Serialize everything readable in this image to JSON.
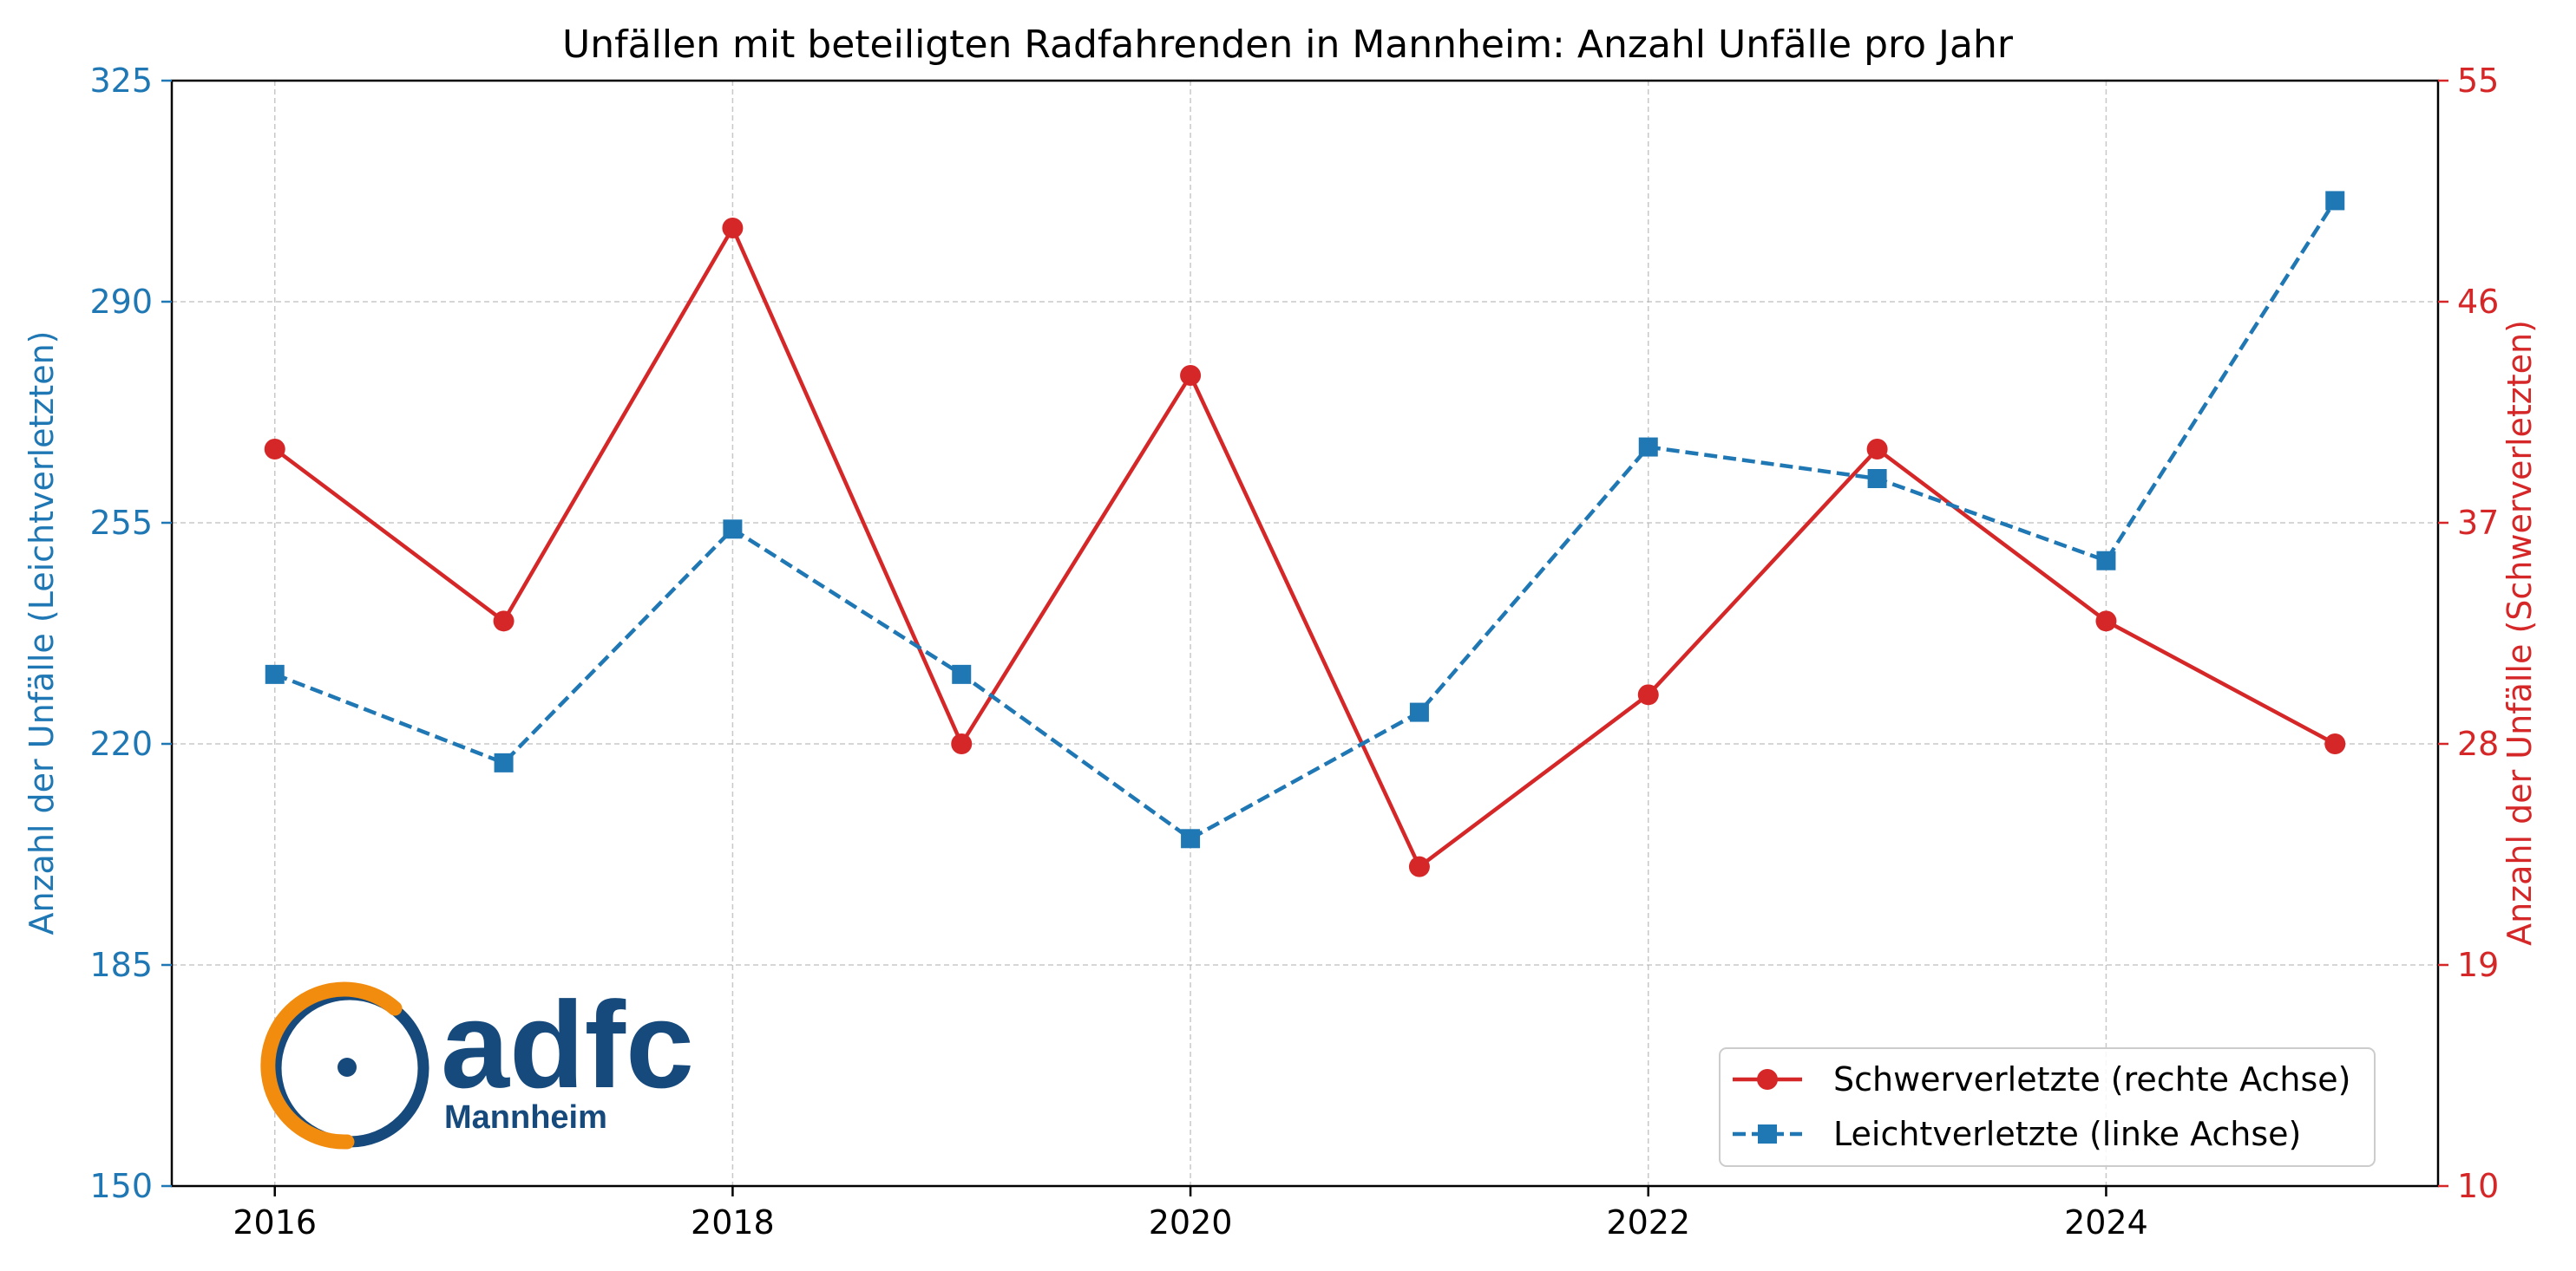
{
  "chart_data": {
    "type": "line",
    "title": "Unfällen mit beteiligten Radfahrenden in Mannheim: Anzahl Unfälle pro Jahr",
    "x": [
      2016,
      2017,
      2018,
      2019,
      2020,
      2021,
      2022,
      2023,
      2024,
      2025
    ],
    "xlim": [
      2015.55,
      2025.45
    ],
    "xticks": [
      2016,
      2018,
      2020,
      2022,
      2024
    ],
    "xtick_labels": [
      "2016",
      "2018",
      "2020",
      "2022",
      "2024"
    ],
    "ylabel_left": "Anzahl der Unfälle (Leichtverletzten)",
    "ylabel_right": "Anzahl der Unfälle (Schwerverletzten)",
    "ylim_left": [
      150,
      325
    ],
    "ylim_right": [
      10,
      55
    ],
    "yticks_left": [
      150,
      185,
      220,
      255,
      290,
      325
    ],
    "yticks_right": [
      10,
      19,
      28,
      37,
      46,
      55
    ],
    "grid": true,
    "legend_position": "lower-right",
    "series": [
      {
        "name": "Schwerverletzte (rechte Achse)",
        "axis": "right",
        "values": [
          40,
          33,
          49,
          28,
          43,
          23,
          30,
          40,
          33,
          28
        ],
        "color": "#d62728",
        "marker": "circle",
        "line": "solid"
      },
      {
        "name": "Leichtverletzte (linke Achse)",
        "axis": "left",
        "values": [
          231,
          217,
          254,
          231,
          205,
          225,
          267,
          262,
          249,
          306
        ],
        "color": "#1f77b4",
        "marker": "square",
        "line": "dashed"
      }
    ]
  },
  "logo": {
    "word": "adfc",
    "subtitle": "Mannheim",
    "color_primary": "#174a7c",
    "color_accent": "#f28c0f"
  }
}
